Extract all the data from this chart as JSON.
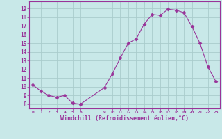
{
  "x": [
    0,
    1,
    2,
    3,
    4,
    5,
    6,
    9,
    10,
    11,
    12,
    13,
    14,
    15,
    16,
    17,
    18,
    19,
    20,
    21,
    22,
    23
  ],
  "y": [
    10.2,
    9.5,
    9.0,
    8.8,
    9.0,
    8.1,
    8.0,
    9.9,
    11.5,
    13.3,
    15.0,
    15.5,
    17.2,
    18.3,
    18.2,
    18.9,
    18.8,
    18.5,
    16.9,
    15.0,
    12.3,
    10.6
  ],
  "line_color": "#993399",
  "marker_color": "#993399",
  "bg_color": "#c8e8e8",
  "grid_color": "#aacccc",
  "xlabel": "Windchill (Refroidissement éolien,°C)",
  "xticks": [
    0,
    1,
    2,
    3,
    4,
    5,
    6,
    9,
    10,
    11,
    12,
    13,
    14,
    15,
    16,
    17,
    18,
    19,
    20,
    21,
    22,
    23
  ],
  "yticks": [
    8,
    9,
    10,
    11,
    12,
    13,
    14,
    15,
    16,
    17,
    18,
    19
  ],
  "ylim": [
    7.5,
    19.8
  ],
  "xlim": [
    -0.5,
    23.5
  ],
  "xlabel_color": "#993399",
  "tick_color": "#993399",
  "spine_color": "#993399"
}
